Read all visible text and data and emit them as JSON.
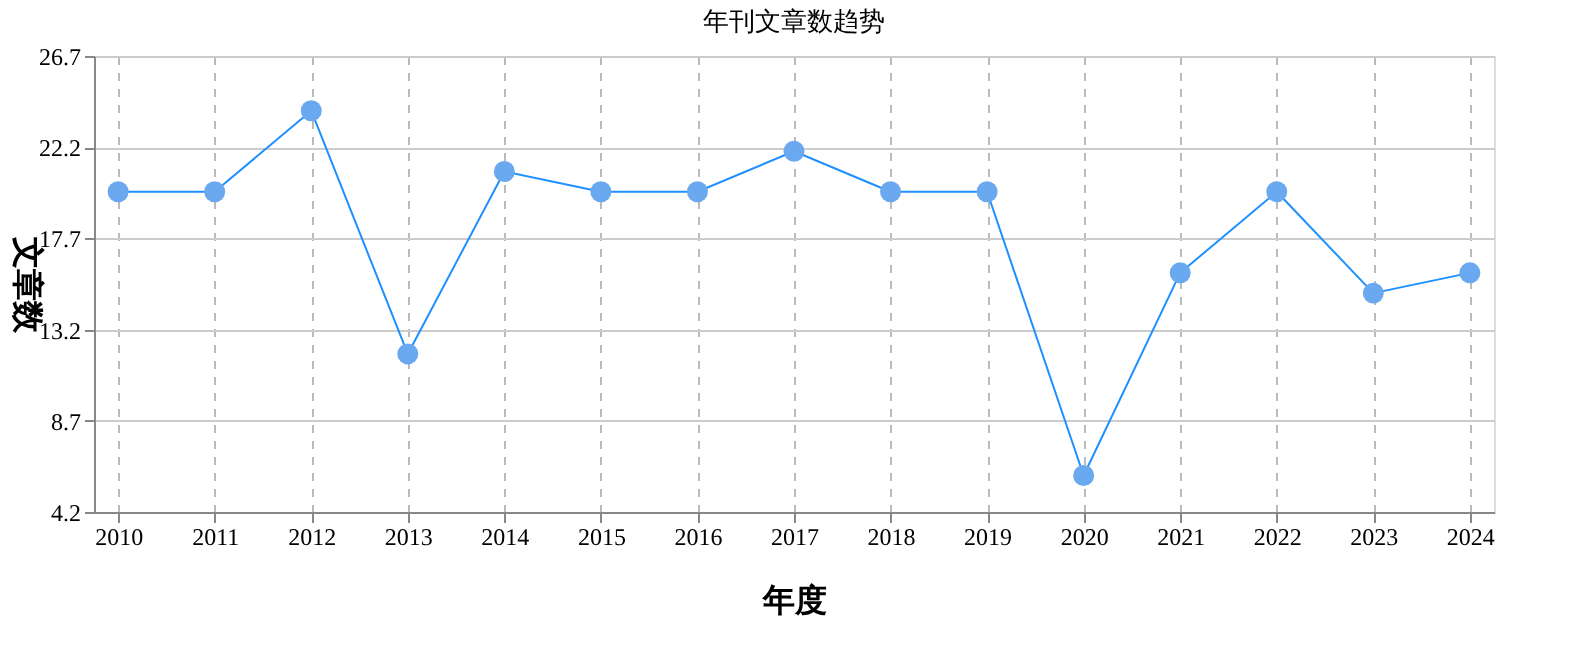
{
  "chart_data": {
    "type": "line",
    "title": "年刊文章数趋势",
    "xlabel": "年度",
    "ylabel": "文章数",
    "categories": [
      "2010",
      "2011",
      "2012",
      "2013",
      "2014",
      "2015",
      "2016",
      "2017",
      "2018",
      "2019",
      "2020",
      "2021",
      "2022",
      "2023",
      "2024"
    ],
    "series": [
      {
        "color": "#1e90ff",
        "values": [
          20,
          20,
          24,
          12,
          21,
          20,
          20,
          22,
          20,
          20,
          6,
          16,
          20,
          15,
          16
        ]
      }
    ],
    "ylim": [
      4.2,
      26.7
    ],
    "yticks": [
      4.2,
      8.7,
      13.2,
      17.7,
      22.2,
      26.7
    ],
    "grid": true,
    "marker": "circle",
    "line_style": "solid"
  }
}
